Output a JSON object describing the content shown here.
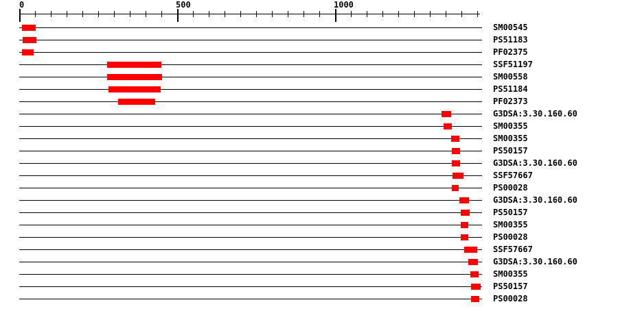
{
  "chart_data": {
    "type": "bar",
    "subtype": "protein-domain-hit-plot",
    "orientation": "horizontal",
    "title": "",
    "xlabel": "",
    "ylabel": "",
    "axis": {
      "position": "top",
      "min": 0,
      "max": 1460,
      "minor_tick_interval": 50,
      "tick_labels": [
        {
          "value": 0,
          "label": "0"
        },
        {
          "value": 500,
          "label": "500"
        },
        {
          "value": 1000,
          "label": "1000"
        }
      ]
    },
    "grid": "off",
    "legend": "none",
    "rows": [
      {
        "label": "SM00545",
        "start": 9,
        "end": 52
      },
      {
        "label": "PS51183",
        "start": 11,
        "end": 54
      },
      {
        "label": "PF02375",
        "start": 9,
        "end": 46
      },
      {
        "label": "SSF51197",
        "start": 278,
        "end": 450
      },
      {
        "label": "SM00558",
        "start": 278,
        "end": 452
      },
      {
        "label": "PS51184",
        "start": 282,
        "end": 448
      },
      {
        "label": "PF02373",
        "start": 313,
        "end": 430
      },
      {
        "label": "G3DSA:3.30.160.60",
        "start": 1337,
        "end": 1367
      },
      {
        "label": "SM00355",
        "start": 1343,
        "end": 1370
      },
      {
        "label": "SM00355",
        "start": 1367,
        "end": 1393
      },
      {
        "label": "PS50157",
        "start": 1370,
        "end": 1396
      },
      {
        "label": "G3DSA:3.30.160.60",
        "start": 1370,
        "end": 1396
      },
      {
        "label": "SSF57667",
        "start": 1372,
        "end": 1407
      },
      {
        "label": "PS00028",
        "start": 1370,
        "end": 1391
      },
      {
        "label": "G3DSA:3.30.160.60",
        "start": 1393,
        "end": 1424
      },
      {
        "label": "PS50157",
        "start": 1398,
        "end": 1426
      },
      {
        "label": "SM00355",
        "start": 1398,
        "end": 1422
      },
      {
        "label": "PS00028",
        "start": 1398,
        "end": 1422
      },
      {
        "label": "SSF57667",
        "start": 1409,
        "end": 1450
      },
      {
        "label": "G3DSA:3.30.160.60",
        "start": 1422,
        "end": 1452
      },
      {
        "label": "SM00355",
        "start": 1428,
        "end": 1454
      },
      {
        "label": "PS50157",
        "start": 1430,
        "end": 1461
      },
      {
        "label": "PS00028",
        "start": 1430,
        "end": 1457
      }
    ],
    "colors": {
      "feature": "#ff0000",
      "line": "#000000",
      "text": "#000000",
      "background": "#ffffff"
    }
  }
}
